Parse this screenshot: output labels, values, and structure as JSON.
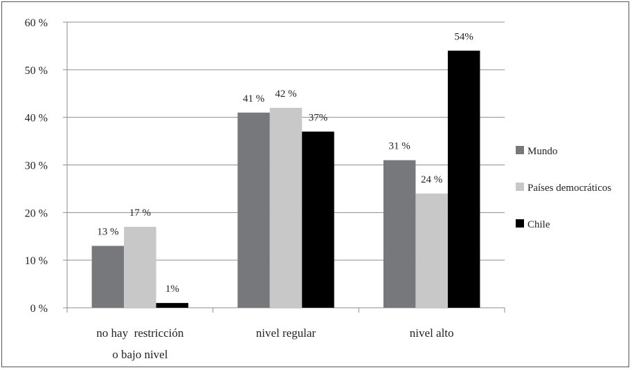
{
  "chart_data": {
    "type": "bar",
    "categories": [
      [
        "no hay  restricción",
        "o bajo nivel"
      ],
      [
        "nivel regular"
      ],
      [
        "nivel alto"
      ]
    ],
    "series": [
      {
        "name": "Mundo",
        "color": "#77787b",
        "values": [
          13,
          41,
          31
        ],
        "labels": [
          "13 %",
          "41 %",
          "31 %"
        ]
      },
      {
        "name": "Países democráticos",
        "color": "#c8c8c8",
        "values": [
          17,
          42,
          24
        ],
        "labels": [
          "17 %",
          "42 %",
          "24 %"
        ]
      },
      {
        "name": "Chile",
        "color": "#000000",
        "values": [
          1,
          37,
          54
        ],
        "labels": [
          "1%",
          "37%",
          "54%"
        ]
      }
    ],
    "y_ticks": [
      "0 %",
      "10 %",
      "20 %",
      "30 %",
      "40 %",
      "50 %",
      "60 %"
    ],
    "ylim": [
      0,
      60
    ],
    "grid": true,
    "legend_position": "right",
    "title": "",
    "xlabel": "",
    "ylabel": ""
  }
}
